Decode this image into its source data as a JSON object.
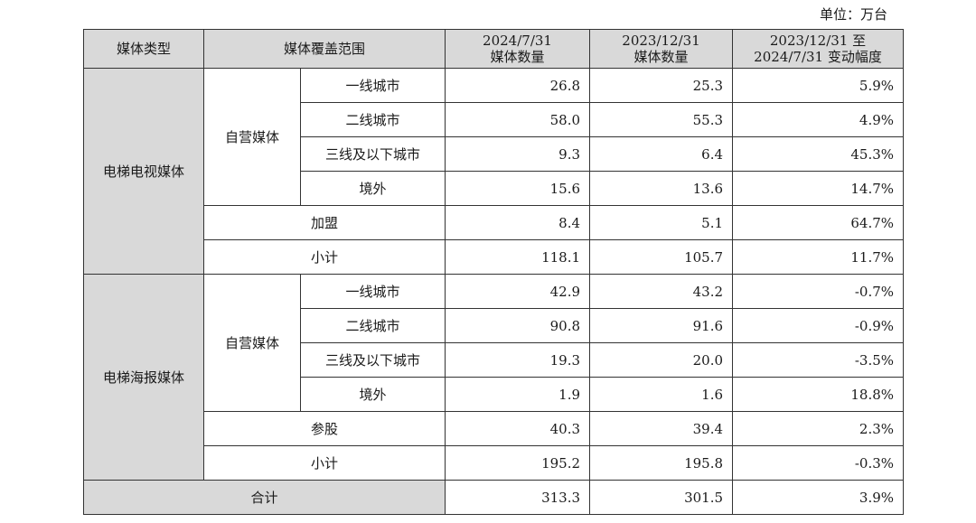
{
  "unit_label": "单位：万台",
  "header": {
    "type": "媒体类型",
    "scope": "媒体覆盖范围",
    "col1_l1": "2024/7/31",
    "col1_l2": "媒体数量",
    "col2_l1": "2023/12/31",
    "col2_l2": "媒体数量",
    "col3_l1": "2023/12/31 至",
    "col3_l2": "2024/7/31 变动幅度"
  },
  "tv": {
    "name": "电梯电视媒体",
    "own": "自营媒体",
    "rows": [
      {
        "city": "一线城市",
        "v1": "26.8",
        "v2": "25.3",
        "chg": "5.9%"
      },
      {
        "city": "二线城市",
        "v1": "58.0",
        "v2": "55.3",
        "chg": "4.9%"
      },
      {
        "city": "三线及以下城市",
        "v1": "9.3",
        "v2": "6.4",
        "chg": "45.3%"
      },
      {
        "city": "境外",
        "v1": "15.6",
        "v2": "13.6",
        "chg": "14.7%"
      }
    ],
    "extra": {
      "label": "加盟",
      "v1": "8.4",
      "v2": "5.1",
      "chg": "64.7%"
    },
    "subtotal": {
      "label": "小计",
      "v1": "118.1",
      "v2": "105.7",
      "chg": "11.7%"
    }
  },
  "poster": {
    "name": "电梯海报媒体",
    "own": "自营媒体",
    "rows": [
      {
        "city": "一线城市",
        "v1": "42.9",
        "v2": "43.2",
        "chg": "-0.7%"
      },
      {
        "city": "二线城市",
        "v1": "90.8",
        "v2": "91.6",
        "chg": "-0.9%"
      },
      {
        "city": "三线及以下城市",
        "v1": "19.3",
        "v2": "20.0",
        "chg": "-3.5%"
      },
      {
        "city": "境外",
        "v1": "1.9",
        "v2": "1.6",
        "chg": "18.8%"
      }
    ],
    "extra": {
      "label": "参股",
      "v1": "40.3",
      "v2": "39.4",
      "chg": "2.3%"
    },
    "subtotal": {
      "label": "小计",
      "v1": "195.2",
      "v2": "195.8",
      "chg": "-0.3%"
    }
  },
  "total": {
    "label": "合计",
    "v1": "313.3",
    "v2": "301.5",
    "chg": "3.9%"
  }
}
